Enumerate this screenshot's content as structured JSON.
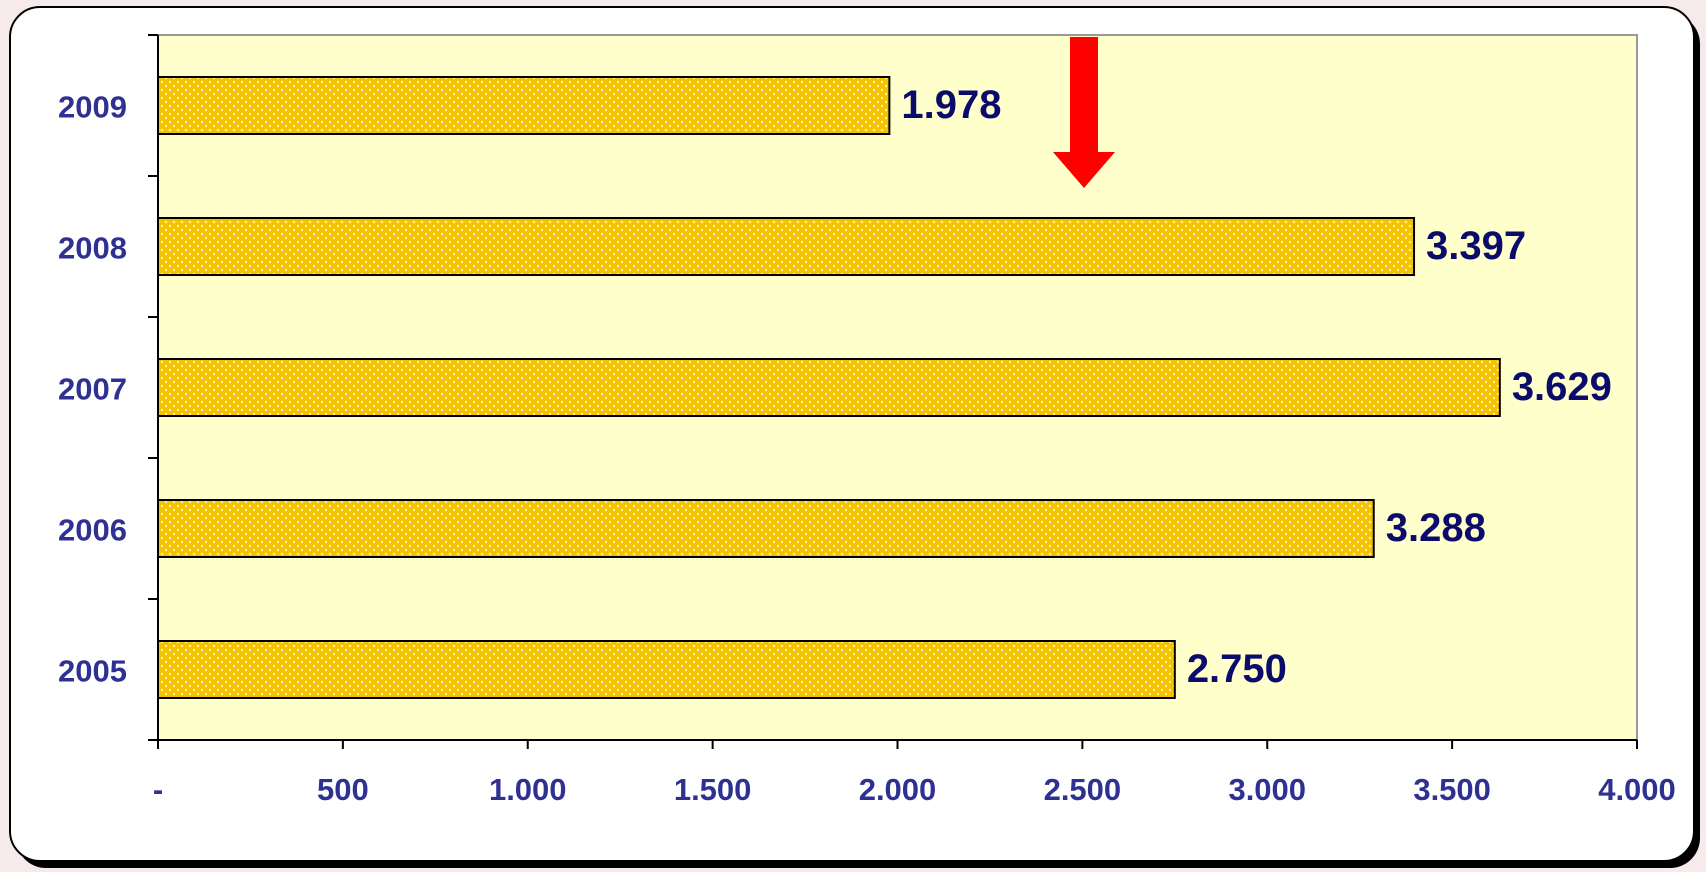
{
  "chart_data": {
    "type": "bar",
    "orientation": "horizontal",
    "categories": [
      "2009",
      "2008",
      "2007",
      "2006",
      "2005"
    ],
    "values": [
      1978,
      3397,
      3629,
      3288,
      2750
    ],
    "value_labels": [
      "1.978",
      "3.397",
      "3.629",
      "3.288",
      "2.750"
    ],
    "color": "#f5c400",
    "xlim": [
      0,
      4000
    ],
    "xticks": [
      {
        "value": 0,
        "label": "-"
      },
      500,
      {
        "value": 1000,
        "label": "1.000"
      },
      {
        "value": 1500,
        "label": "1.500"
      },
      {
        "value": 2000,
        "label": "2.000"
      },
      {
        "value": 2500,
        "label": "2.500"
      },
      {
        "value": 3000,
        "label": "3.000"
      },
      {
        "value": 3500,
        "label": "3.500"
      },
      {
        "value": 4000,
        "label": "4.000"
      }
    ],
    "grid": false
  }
}
